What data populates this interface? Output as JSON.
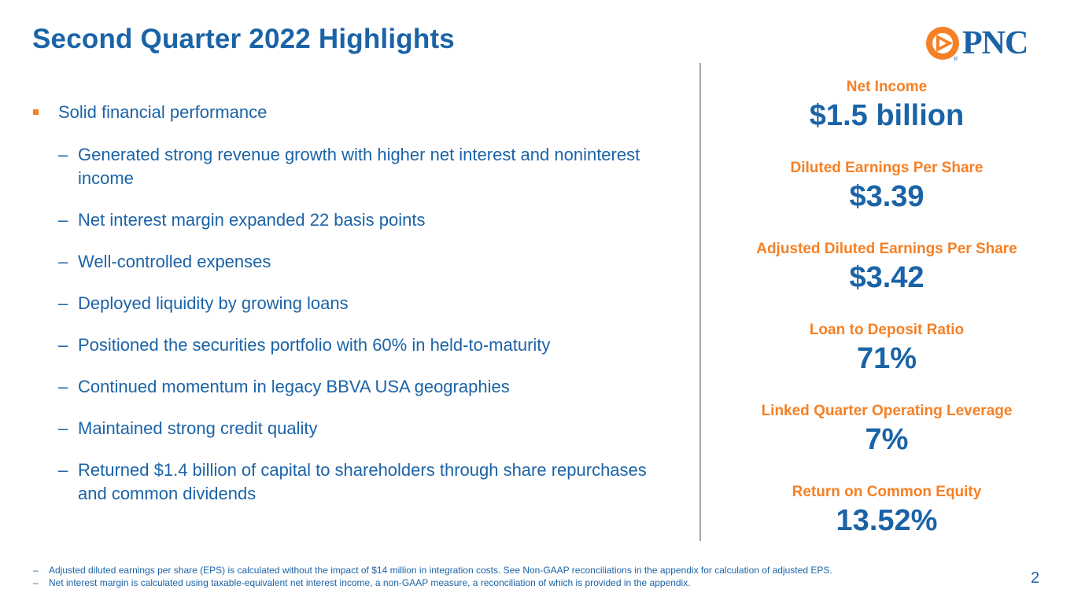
{
  "slide": {
    "title": "Second Quarter 2022 Highlights",
    "page_number": "2"
  },
  "logo": {
    "text": "PNC",
    "mark": "®",
    "colors": {
      "orange": "#f58025",
      "blue": "#1b63a7"
    }
  },
  "highlights": {
    "main_bullet": "Solid financial performance",
    "sub_bullets": [
      "Generated strong revenue growth with higher net interest and noninterest income",
      "Net interest margin expanded 22 basis points",
      "Well-controlled expenses",
      "Deployed liquidity by growing loans",
      "Positioned the securities portfolio with 60% in held-to-maturity",
      "Continued momentum in legacy BBVA USA geographies",
      "Maintained strong credit quality",
      "Returned $1.4 billion of capital to shareholders through share repurchases and common dividends"
    ],
    "dash": "–"
  },
  "metrics": [
    {
      "label": "Net Income",
      "value": "$1.5 billion"
    },
    {
      "label": "Diluted Earnings Per Share",
      "value": "$3.39"
    },
    {
      "label": "Adjusted Diluted Earnings Per Share",
      "value": "$3.42"
    },
    {
      "label": "Loan to Deposit Ratio",
      "value": "71%"
    },
    {
      "label": "Linked Quarter Operating Leverage",
      "value": "7%"
    },
    {
      "label": "Return on Common Equity",
      "value": "13.52%"
    }
  ],
  "footnotes": [
    "Adjusted diluted earnings per share (EPS) is calculated without the impact of $14 million in integration costs. See Non-GAAP reconciliations in the appendix for calculation of adjusted EPS.",
    "Net interest margin is calculated using taxable-equivalent net interest income, a non-GAAP measure, a reconciliation of which is provided in the appendix."
  ],
  "colors": {
    "primary_blue": "#1b63a7",
    "accent_orange": "#f58025",
    "divider_gray": "#a6a6a6"
  }
}
